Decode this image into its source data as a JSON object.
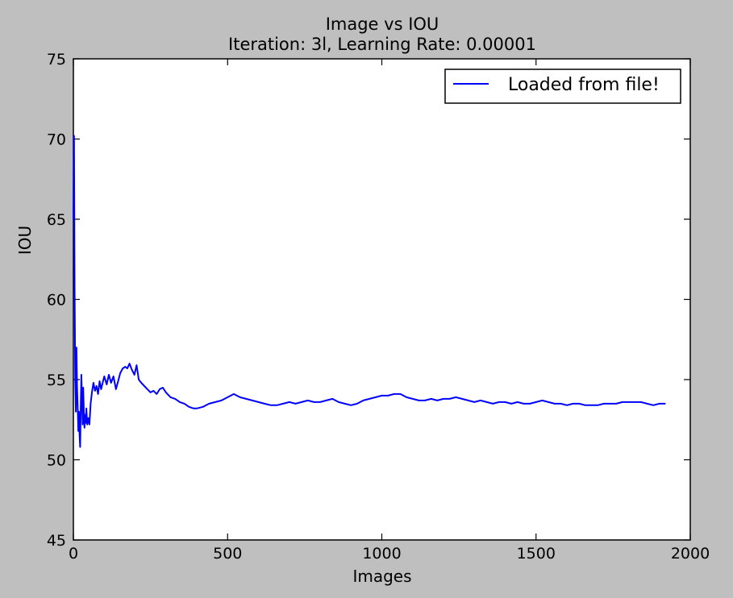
{
  "chart_data": {
    "type": "line",
    "title": "Image vs IOU",
    "subtitle": "Iteration: 3l, Learning Rate: 0.00001",
    "xlabel": "Images",
    "ylabel": "IOU",
    "xlim": [
      0,
      2000
    ],
    "ylim": [
      45,
      75
    ],
    "xticks": [
      0,
      500,
      1000,
      1500,
      2000
    ],
    "yticks": [
      45,
      50,
      55,
      60,
      65,
      70,
      75
    ],
    "grid": false,
    "legend_position": "top-right",
    "series": [
      {
        "name": "Loaded from file!",
        "color": "#0000ff",
        "x": [
          0,
          2,
          4,
          6,
          8,
          10,
          12,
          14,
          16,
          18,
          20,
          22,
          24,
          26,
          28,
          30,
          32,
          34,
          36,
          38,
          40,
          42,
          45,
          48,
          52,
          56,
          60,
          65,
          70,
          75,
          80,
          85,
          90,
          95,
          100,
          108,
          115,
          122,
          130,
          138,
          145,
          152,
          160,
          168,
          175,
          182,
          190,
          198,
          205,
          212,
          220,
          230,
          240,
          250,
          260,
          270,
          280,
          290,
          300,
          315,
          330,
          345,
          360,
          375,
          390,
          400,
          420,
          440,
          460,
          480,
          500,
          520,
          540,
          560,
          580,
          600,
          620,
          640,
          660,
          680,
          700,
          720,
          740,
          760,
          780,
          800,
          820,
          840,
          860,
          880,
          900,
          920,
          940,
          960,
          980,
          1000,
          1020,
          1040,
          1060,
          1080,
          1100,
          1120,
          1140,
          1160,
          1180,
          1200,
          1220,
          1240,
          1260,
          1280,
          1300,
          1320,
          1340,
          1360,
          1380,
          1400,
          1420,
          1440,
          1460,
          1480,
          1500,
          1520,
          1540,
          1560,
          1580,
          1600,
          1620,
          1640,
          1660,
          1680,
          1700,
          1720,
          1740,
          1760,
          1780,
          1800,
          1820,
          1840,
          1860,
          1880,
          1900,
          1920
        ],
        "y": [
          65,
          70.2,
          61,
          55,
          53,
          57,
          54.5,
          53.2,
          51.8,
          53,
          51.5,
          50.8,
          53.5,
          55.3,
          53.8,
          52.2,
          54.5,
          53,
          52,
          52.8,
          52.3,
          53.2,
          52.2,
          52.6,
          52.2,
          53.5,
          54.2,
          54.8,
          54.3,
          54.6,
          54.1,
          54.9,
          54.4,
          54.8,
          55.2,
          54.7,
          55.3,
          54.8,
          55.2,
          54.4,
          54.9,
          55.4,
          55.7,
          55.8,
          55.7,
          56,
          55.6,
          55.3,
          55.9,
          55,
          54.8,
          54.6,
          54.4,
          54.2,
          54.3,
          54.1,
          54.4,
          54.5,
          54.2,
          53.9,
          53.8,
          53.6,
          53.5,
          53.3,
          53.2,
          53.2,
          53.3,
          53.5,
          53.6,
          53.7,
          53.9,
          54.1,
          53.9,
          53.8,
          53.7,
          53.6,
          53.5,
          53.4,
          53.4,
          53.5,
          53.6,
          53.5,
          53.6,
          53.7,
          53.6,
          53.6,
          53.7,
          53.8,
          53.6,
          53.5,
          53.4,
          53.5,
          53.7,
          53.8,
          53.9,
          54,
          54,
          54.1,
          54.1,
          53.9,
          53.8,
          53.7,
          53.7,
          53.8,
          53.7,
          53.8,
          53.8,
          53.9,
          53.8,
          53.7,
          53.6,
          53.7,
          53.6,
          53.5,
          53.6,
          53.6,
          53.5,
          53.6,
          53.5,
          53.5,
          53.6,
          53.7,
          53.6,
          53.5,
          53.5,
          53.4,
          53.5,
          53.5,
          53.4,
          53.4,
          53.4,
          53.5,
          53.5,
          53.5,
          53.6,
          53.6,
          53.6,
          53.6,
          53.5,
          53.4,
          53.5,
          53.5
        ]
      }
    ]
  }
}
